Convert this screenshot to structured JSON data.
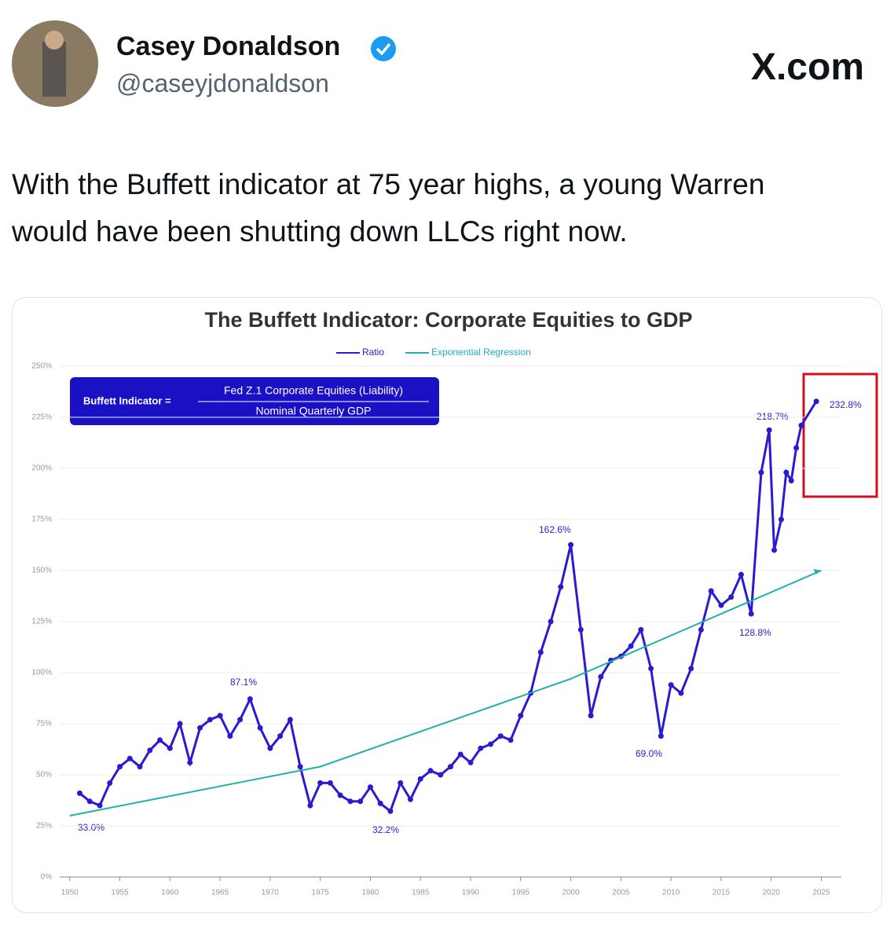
{
  "header": {
    "name": "Casey Donaldson",
    "handle": "@caseyjdonaldson",
    "site": "X.com"
  },
  "tweet": {
    "text": "With the Buffett indicator at 75 year highs, a young Warren would have been shutting down LLCs right now."
  },
  "chart_data": {
    "type": "line",
    "title": "The Buffett Indicator: Corporate Equities to GDP",
    "formula": {
      "lhs": "Buffett Indicator =",
      "numerator": "Fed Z.1 Corporate Equities (Liability)",
      "denominator": "Nominal Quarterly GDP"
    },
    "annotations": [
      "33.0%",
      "87.1%",
      "32.2%",
      "162.6%",
      "69.0%",
      "128.8%",
      "218.7%",
      "232.8%"
    ],
    "xlim": [
      1949,
      2027
    ],
    "xticks": [
      1950,
      1955,
      1960,
      1965,
      1970,
      1975,
      1980,
      1985,
      1990,
      1995,
      2000,
      2005,
      2010,
      2015,
      2020,
      2025
    ],
    "ylim": [
      0,
      250
    ],
    "yticks": [
      {
        "value": 0,
        "label": "0%"
      },
      {
        "value": 25,
        "label": "25%"
      },
      {
        "value": 50,
        "label": "50%"
      },
      {
        "value": 75,
        "label": "75%"
      },
      {
        "value": 100,
        "label": "100%"
      },
      {
        "value": 125,
        "label": "125%"
      },
      {
        "value": 150,
        "label": "150%"
      },
      {
        "value": 175,
        "label": "175%"
      },
      {
        "value": 200,
        "label": "200%"
      },
      {
        "value": 225,
        "label": "225%"
      },
      {
        "value": 250,
        "label": "250%"
      }
    ],
    "grid": true,
    "series": [
      {
        "name": "Ratio",
        "color": "#2a1bd0",
        "x": [
          1951,
          1952,
          1953,
          1954,
          1955,
          1956,
          1957,
          1958,
          1959,
          1960,
          1961,
          1962,
          1963,
          1964,
          1965,
          1966,
          1967,
          1968,
          1969,
          1970,
          1971,
          1972,
          1973,
          1974,
          1975,
          1976,
          1977,
          1978,
          1979,
          1980,
          1981,
          1982,
          1983,
          1984,
          1985,
          1986,
          1987,
          1988,
          1989,
          1990,
          1991,
          1992,
          1993,
          1994,
          1995,
          1996,
          1997,
          1998,
          1999,
          2000,
          2001,
          2002,
          2003,
          2004,
          2005,
          2006,
          2007,
          2008,
          2009,
          2010,
          2011,
          2012,
          2013,
          2014,
          2015,
          2016,
          2017,
          2018,
          2019,
          2019.8,
          2020.3,
          2021,
          2021.5,
          2022,
          2022.5,
          2023,
          2024.5
        ],
        "values": [
          41,
          37,
          35,
          46,
          54,
          58,
          54,
          62,
          67,
          63,
          75,
          56,
          73,
          77,
          79,
          69,
          77,
          87.1,
          73,
          63,
          69,
          77,
          54,
          35,
          46,
          46,
          40,
          37,
          37,
          44,
          36,
          32.2,
          46,
          38,
          48,
          52,
          50,
          54,
          60,
          56,
          63,
          65,
          69,
          67,
          79,
          90,
          110,
          125,
          142,
          162.6,
          121,
          79,
          98,
          106,
          108,
          113,
          121,
          102,
          69.0,
          94,
          90,
          102,
          121,
          140,
          133,
          137,
          148,
          128.8,
          198,
          218.7,
          160,
          175,
          198,
          194,
          210,
          221,
          232.8
        ]
      },
      {
        "name": "Exponential Regression",
        "color": "#1fb0b0",
        "x": [
          1950,
          1975,
          2000,
          2025
        ],
        "values": [
          30,
          54,
          97,
          150
        ]
      }
    ]
  }
}
